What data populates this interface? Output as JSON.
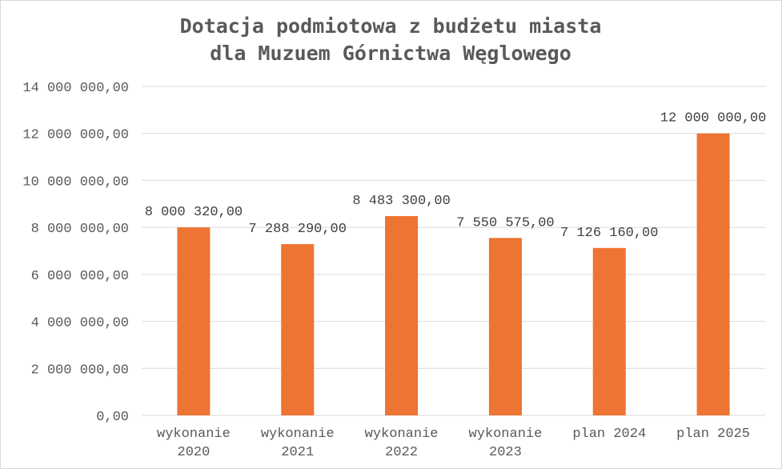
{
  "chart_data": {
    "type": "bar",
    "title_lines": [
      "Dotacja podmiotowa z budżetu miasta",
      "dla Muzuem Górnictwa Węglowego"
    ],
    "categories": [
      [
        "wykonanie",
        "2020"
      ],
      [
        "wykonanie",
        "2021"
      ],
      [
        "wykonanie",
        "2022"
      ],
      [
        "wykonanie",
        "2023"
      ],
      [
        "plan 2024"
      ],
      [
        "plan 2025"
      ]
    ],
    "values": [
      8000320,
      7288290,
      8483300,
      7550575,
      7126160,
      12000000
    ],
    "data_labels": [
      "8 000 320,00",
      "7 288 290,00",
      "8 483 300,00",
      "7 550 575,00",
      "7 126 160,00",
      "12 000 000,00"
    ],
    "yticks": [
      0,
      2000000,
      4000000,
      6000000,
      8000000,
      10000000,
      12000000,
      14000000
    ],
    "ytick_labels": [
      "0,00",
      "2 000 000,00",
      "4 000 000,00",
      "6 000 000,00",
      "8 000 000,00",
      "10 000 000,00",
      "12 000 000,00",
      "14 000 000,00"
    ],
    "ylim": [
      0,
      14000000
    ],
    "grid": true,
    "legend": "none",
    "bar_color": "#ed7432"
  }
}
